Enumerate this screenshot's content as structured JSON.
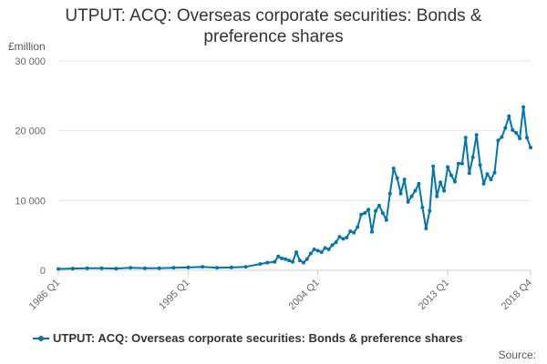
{
  "title_line1": "UTPUT: ACQ: Overseas corporate securities: Bonds &",
  "title_line2": "preference shares",
  "unit": "£million",
  "source": "Source:",
  "colors": {
    "series": "#0075b0",
    "grid": "#e6e6e6",
    "axis_text": "#666666"
  },
  "chart_data": {
    "type": "line",
    "title": "UTPUT: ACQ: Overseas corporate securities: Bonds & preference shares",
    "ylabel": "£million",
    "ylim": [
      0,
      30000
    ],
    "y_ticks": [
      0,
      10000,
      20000,
      30000
    ],
    "y_tick_labels": [
      "0",
      "10 000",
      "20 000",
      "30 000"
    ],
    "x_tick_labels": [
      "1986 Q1",
      "1995 Q1",
      "2004 Q1",
      "2013 Q1",
      "2018 Q4"
    ],
    "x_range": [
      "1986 Q1",
      "2018 Q4"
    ],
    "grid": true,
    "legend": "bottom",
    "series": [
      {
        "name": "UTPUT: ACQ: Overseas corporate securities: Bonds & preference shares",
        "x": [
          "1986 Q1",
          "1987 Q1",
          "1988 Q1",
          "1989 Q1",
          "1990 Q1",
          "1991 Q1",
          "1992 Q1",
          "1993 Q1",
          "1994 Q1",
          "1995 Q1",
          "1996 Q1",
          "1997 Q1",
          "1998 Q1",
          "1999 Q1",
          "2000 Q1",
          "2000 Q3",
          "2001 Q1",
          "2001 Q2",
          "2001 Q3",
          "2001 Q4",
          "2002 Q1",
          "2002 Q2",
          "2002 Q3",
          "2002 Q4",
          "2003 Q1",
          "2003 Q2",
          "2003 Q3",
          "2003 Q4",
          "2004 Q1",
          "2004 Q2",
          "2004 Q3",
          "2004 Q4",
          "2005 Q1",
          "2005 Q2",
          "2005 Q3",
          "2005 Q4",
          "2006 Q1",
          "2006 Q2",
          "2006 Q3",
          "2006 Q4",
          "2007 Q1",
          "2007 Q2",
          "2007 Q3",
          "2007 Q4",
          "2008 Q1",
          "2008 Q2",
          "2008 Q3",
          "2008 Q4",
          "2009 Q1",
          "2009 Q2",
          "2009 Q3",
          "2009 Q4",
          "2010 Q1",
          "2010 Q2",
          "2010 Q3",
          "2010 Q4",
          "2011 Q1",
          "2011 Q2",
          "2011 Q3",
          "2011 Q4",
          "2012 Q1",
          "2012 Q2",
          "2012 Q3",
          "2012 Q4",
          "2013 Q1",
          "2013 Q2",
          "2013 Q3",
          "2013 Q4",
          "2014 Q1",
          "2014 Q2",
          "2014 Q3",
          "2014 Q4",
          "2015 Q1",
          "2015 Q2",
          "2015 Q3",
          "2015 Q4",
          "2016 Q1",
          "2016 Q2",
          "2016 Q3",
          "2016 Q4",
          "2017 Q1",
          "2017 Q2",
          "2017 Q3",
          "2017 Q4",
          "2018 Q1",
          "2018 Q2",
          "2018 Q3",
          "2018 Q4"
        ],
        "values": [
          200,
          250,
          300,
          300,
          250,
          350,
          300,
          300,
          350,
          400,
          500,
          350,
          400,
          500,
          900,
          1100,
          1200,
          2000,
          1700,
          1600,
          1400,
          1200,
          2600,
          1400,
          1100,
          1600,
          2400,
          3000,
          2800,
          2600,
          3200,
          3000,
          3600,
          4000,
          4800,
          4500,
          4700,
          5600,
          5400,
          6200,
          8000,
          8200,
          8700,
          5500,
          8500,
          9300,
          8200,
          7200,
          11000,
          14600,
          13200,
          11000,
          13000,
          9800,
          10600,
          11400,
          12400,
          9000,
          6000,
          8500,
          14900,
          10600,
          12600,
          11400,
          14800,
          13600,
          12700,
          15300,
          15300,
          19000,
          13900,
          16200,
          19400,
          15100,
          12400,
          13800,
          13000,
          14000,
          18600,
          19100,
          20400,
          22100,
          20100,
          19700,
          18900,
          23400,
          19000,
          17600
        ]
      }
    ]
  }
}
